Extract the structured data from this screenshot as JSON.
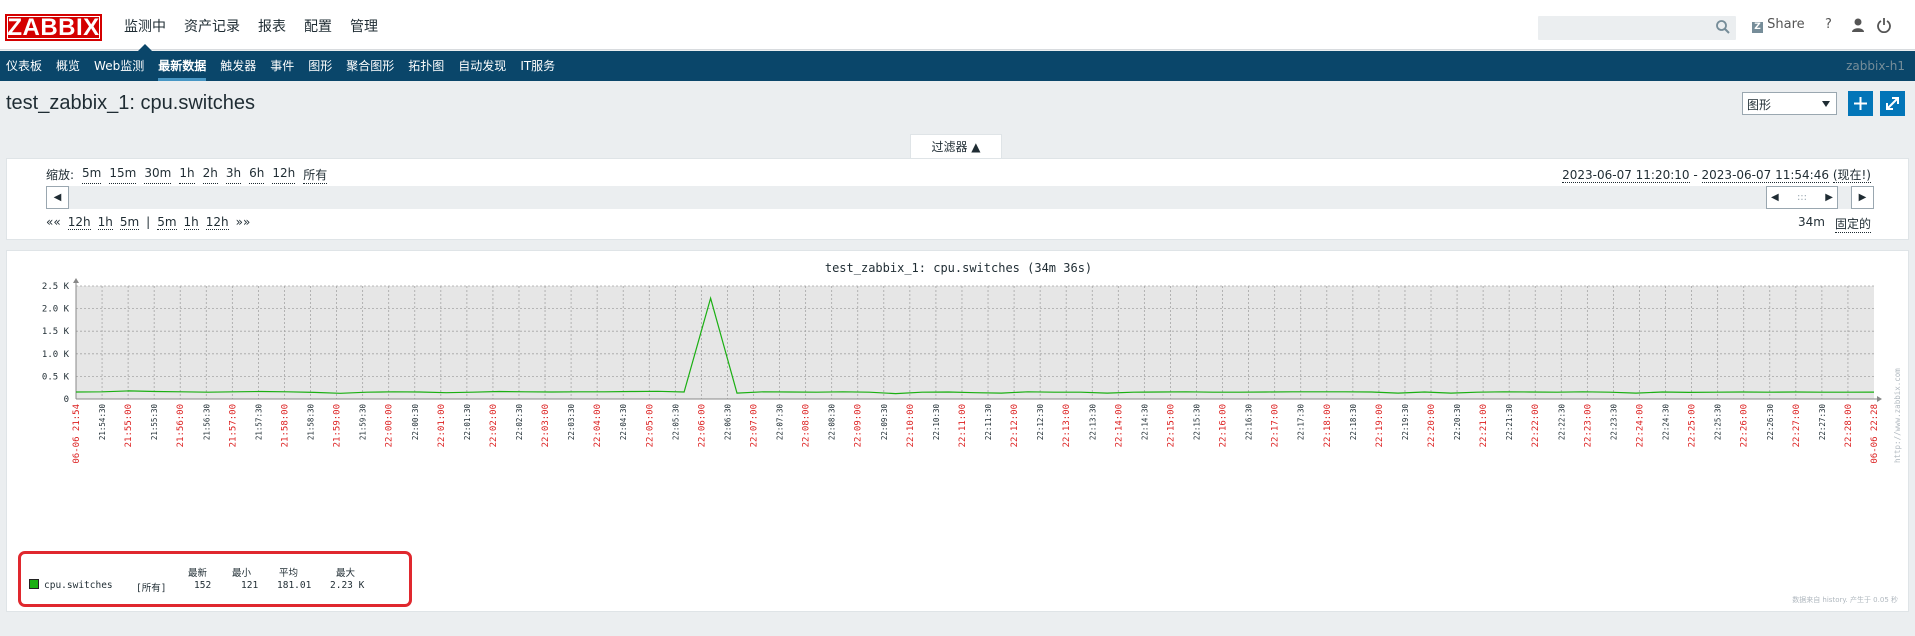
{
  "header": {
    "logo": "ZABBIX",
    "menu": [
      "监测中",
      "资产记录",
      "报表",
      "配置",
      "管理"
    ],
    "selected_menu": "监测中",
    "share_label": "Share",
    "help_label": "?"
  },
  "submenu": {
    "items": [
      "仪表板",
      "概览",
      "Web监测",
      "最新数据",
      "触发器",
      "事件",
      "图形",
      "聚合图形",
      "拓扑图",
      "自动发现",
      "IT服务"
    ],
    "selected": "最新数据",
    "server_name": "zabbix-h1"
  },
  "page": {
    "title": "test_zabbix_1: cpu.switches",
    "view_select": "图形"
  },
  "filter": {
    "tab_label": "过滤器 ▲",
    "zoom_label": "缩放:",
    "zoom_options": [
      "5m",
      "15m",
      "30m",
      "1h",
      "2h",
      "3h",
      "6h",
      "12h",
      "所有"
    ],
    "range_from": "2023-06-07 11:20:10",
    "range_to": "2023-06-07 11:54:46",
    "range_now": "(现在!)",
    "nav_left": [
      "««",
      "12h",
      "1h",
      "5m",
      "|",
      "5m",
      "1h",
      "12h",
      "»»"
    ],
    "period_value": "34m",
    "fixed_label": "固定的",
    "timeline_handle": ":::"
  },
  "chart_data": {
    "type": "line",
    "title": "test_zabbix_1: cpu.switches (34m 36s)",
    "ylabel": "",
    "y_ticks": [
      "0",
      "0.5 K",
      "1.0 K",
      "1.5 K",
      "2.0 K",
      "2.5 K"
    ],
    "ylim": [
      0,
      2500
    ],
    "x_tick_labels": [
      "21:54:30",
      "21:55:00",
      "21:55:30",
      "21:56:00",
      "21:56:30",
      "21:57:00",
      "21:57:30",
      "21:58:00",
      "21:58:30",
      "21:59:00",
      "21:59:30",
      "22:00:00",
      "22:00:30",
      "22:01:00",
      "22:01:30",
      "22:02:00",
      "22:02:30",
      "22:03:00",
      "22:03:30",
      "22:04:00",
      "22:04:30",
      "22:05:00",
      "22:05:30",
      "22:06:00",
      "22:06:30",
      "22:07:00",
      "22:07:30",
      "22:08:00",
      "22:08:30",
      "22:09:00",
      "22:09:30",
      "22:10:00",
      "22:10:30",
      "22:11:00",
      "22:11:30",
      "22:12:00",
      "22:12:30",
      "22:13:00",
      "22:13:30",
      "22:14:00",
      "22:14:30",
      "22:15:00",
      "22:15:30",
      "22:16:00",
      "22:16:30",
      "22:17:00",
      "22:17:30",
      "22:18:00",
      "22:18:30",
      "22:19:00",
      "22:19:30",
      "22:20:00",
      "22:20:30",
      "22:21:00",
      "22:21:30",
      "22:22:00",
      "22:22:30",
      "22:23:00",
      "22:23:30",
      "22:24:00",
      "22:24:30",
      "22:25:00",
      "22:25:30",
      "22:26:00",
      "22:26:30",
      "22:27:00",
      "22:27:30",
      "22:28:00"
    ],
    "x_start_label": "06-06 21:54",
    "x_end_label": "06-06 22:28",
    "series": [
      {
        "name": "cpu.switches",
        "color": "#1aaf12",
        "values": [
          155,
          160,
          180,
          165,
          160,
          150,
          160,
          165,
          160,
          145,
          125,
          150,
          160,
          155,
          140,
          150,
          165,
          160,
          155,
          160,
          160,
          165,
          170,
          155,
          2230,
          130,
          160,
          155,
          150,
          160,
          150,
          120,
          150,
          155,
          140,
          130,
          160,
          150,
          150,
          130,
          150,
          155,
          160,
          150,
          150,
          155,
          160,
          160,
          160,
          155,
          130,
          155,
          130,
          150,
          160,
          155,
          150,
          160,
          150,
          130,
          155,
          145,
          150,
          155,
          150,
          155,
          150,
          150,
          152
        ]
      }
    ]
  },
  "legend": {
    "headers": [
      "最新",
      "最小",
      "平均",
      "最大"
    ],
    "item_name": "cpu.switches",
    "item_func": "[所有]",
    "latest": "152",
    "min": "121",
    "avg": "181.01",
    "max": "2.23 K"
  },
  "graph_footer": "数据来自 history. 产生于 0.05 秒",
  "watermark": "http://www.zabbix.com"
}
